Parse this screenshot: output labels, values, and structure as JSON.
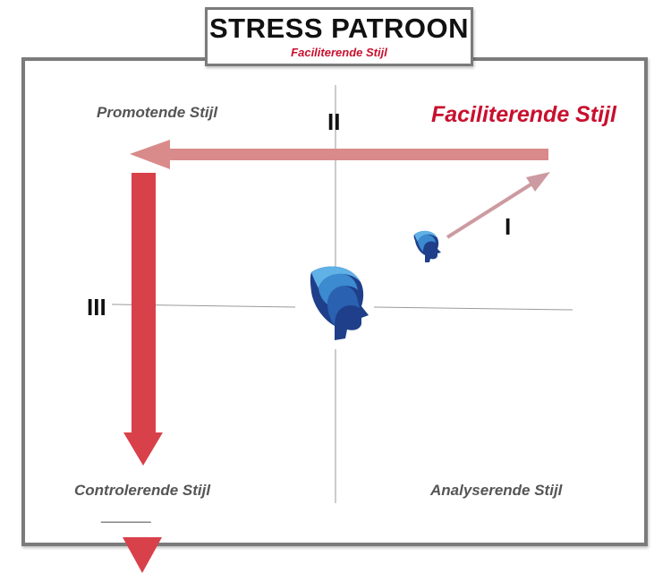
{
  "header": {
    "title": "STRESS PATROON",
    "subtitle": "Faciliterende Stijl"
  },
  "quadrants": {
    "top_left": "Promotende Stijl",
    "top_right": "Faciliterende Stijl",
    "bottom_left": "Controlerende Stijl",
    "bottom_right": "Analyserende Stijl"
  },
  "stages": {
    "one": "I",
    "two": "II",
    "three": "III"
  },
  "continuation": "_____",
  "icons": {
    "center": "human-head-profile-icon",
    "small": "human-head-profile-icon"
  },
  "colors": {
    "accent_red": "#c8102e",
    "arrow_light": "#d98a8a",
    "arrow_mid": "#cc9aa0",
    "arrow_strong": "#d8414a",
    "frame": "#7b7b7b",
    "head_blue_dark": "#1f3f8a",
    "head_blue_light": "#5fb1e6"
  }
}
